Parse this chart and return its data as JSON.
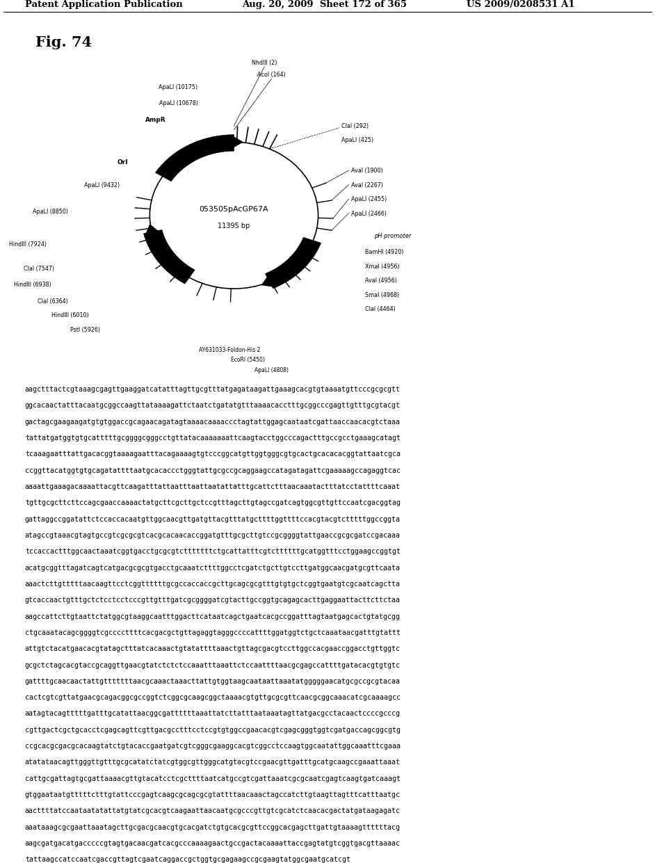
{
  "header_left": "Patent Application Publication",
  "header_middle": "Aug. 20, 2009  Sheet 172 of 365",
  "header_right": "US 2009/0208531 A1",
  "fig_label": "Fig. 74",
  "plasmid_name": "053505pAcGP67A",
  "plasmid_size": "11395 bp",
  "background_color": "#ffffff",
  "dna_sequence": "aagctttactcgtaaagcgagttgaaggatcatatttagttgcgtttatgagataagattgaaagcacgtgtaaaatgttcccgcgcgttggcacaactatttacaatgcggccaagttataaaagattctaatctgatatgtttaaaacacctttgcggcccgagttgtttgcgtacgtgactagcgaagaagatgtgtggaccgcagaacagatagtaaaacaaaaccctagtattggagcaataatcgattaaccaacacgtctaaatattatgatggtgtgcatttttgcggggcgggcctgttatacaaaaaaattcaagtacctggcccagactttgccgcctgaaagcatagttcaaagaatttattgacacggtaaaagaatttacagaaaagtgtcccggcatgttggtgggcgtgcactgcacacacggtattaatcgcaccggttacatggtgtgcagatattttaatgcacaccctgggtattgcgccgcaggaagccatagatagattcgaaaaagccagaggtcacaaaattgaaagacaaaattacgttcaagatttattaatttaattaatattatttgcattctttaacaaatactttatcctattttcaaattgttgcgcttcttccagcgaaccaaaactatgcttcgcttgctccgtttagcttgtagccgatcagtggcgttgttccaatcgacggtaggattaggccggatattctccaccacaatgttggcaacgttgatgttacgtttatgcttttggttttccacgtacgtctttttggccggtaatagccgtaaacgtagtgccgtcgcgcgtcacgcacaacaccggatgtttgcgcttgtccgcggggtattgaaccgcgcgatccgacaaatccaccactttggcaactaaatcggtgacctgcgcgtctttttttctgcattatttcgtcttttttgcatggtttcctggaagccggtgtacatgcggtttagatcagtcatgacgcgcgtgacctgcaaatcttttggcctcgatctgcttgtccttgatggcaacgatgcgttcaataaaactcttgtttttaacaagttcctcggttttttgcgccaccaccgcttgcagcgcgtttgtgtgctcggtgaatgtcgcaatcagcttagtcaccaactgtttgctctcctcctcccgttgtttgatcgcggggatcgtacttgccggtgcagagcacttgaggaattacttcttctaaaagccattcttgtaattctatggcgtaaggcaatttggacttcataatcagctgaatcacgccggatttagtaatgagcactgtatgcggctgcaaatacagcggggtcgccccttttcacgacgctgttagaggtagggccccattttggatggtctgctcaaataacgatttgtatttattgtctacatgaacacgtatagctttatcacaaactgtatattttaaactgttagcgacgtccttggccacgaaccggacctgttggtcgcgctctagcacgtaccgcaggttgaacgtatctctctccaaatttaaattctccaattttaacgcgagccattttgatacacgtgtgtcgattttgcaacaactattgtttttttaacgcaaactaaacttattgtggtaagcaataattaaatatgggggaacatgcgccgcgtacaacactcgtcgttatgaacgcagacggcgccggtctcggcgcaagcggctaaaacgtgttgcgcgttcaacgcggcaaacatcgcaaaagccaatagtacagtttttgatttgcatattaacggcgattttttaaattatcttatttaataaatagttatgacgcctacaactccccgcccgcgttgactcgctgcacctcgagcagttcgttgacgcctttcctccgtgtggccgaacacgtcgagcgggtggtcgatgaccagcggcgtgccgcacgcgacgcacaagtatctgtacaccgaatgatcgtcgggcgaaggcacgtcggcctccaagtggcaatattggcaaatttcgaaaatatataacagttgggttgtttgcgcatatctatcgtggcgttgggcatgtacgtccgaacgttgatttgcatgcaagccgaaattaaatcattgcgattagtgcgattaaaacgttgtacatcctcgcttttaatcatgccgtcgattaaatcgcgcaatcgagtcaagtgatcaaagtgtggaataatgtttttctttgtattcccgagtcaagcgcagcgcgtattttaacaaactagccatcttgtaagttagtttcatttaatgcaacttttatccaataatatattatgtatcgcacgtcaagaattaacaatgcgcccgttgtcgcatctcaacacgactatgataagagatcaaataaagcgcgaattaaatagcttgcgacgcaacgtgcacgatctgtgcacgcgttccggcacgagcttgattgtaaaagttttttacgaagcgatgacatgacccccgtagtgacaacgatcacgcccaaaagaactgccgactacaaaattaccgagtatgtcggtgacgttaaaactattaagccatccaatcgaccgttagtcgaatcaggaccgctggtgcgagaagccgcgaagtatggcgaatgcatcgt"
}
